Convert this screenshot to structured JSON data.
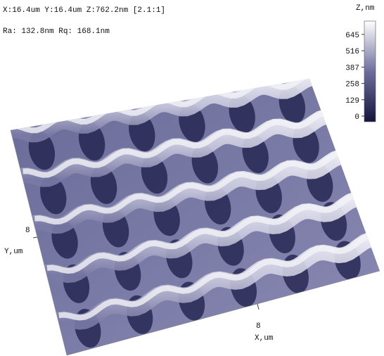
{
  "info": {
    "scan": "X:16.4um  Y:16.4um  Z:762.2nm [2.1:1]",
    "roughness": "Ra: 132.8nm  Rq: 168.1nm"
  },
  "colorbar": {
    "title": "Z,nm",
    "ticks": [
      645,
      516,
      387,
      258,
      129,
      0
    ]
  },
  "axes": {
    "y": {
      "tick": "8",
      "label": "Y,um"
    },
    "x": {
      "tick": "8",
      "label": "X,um"
    }
  }
}
